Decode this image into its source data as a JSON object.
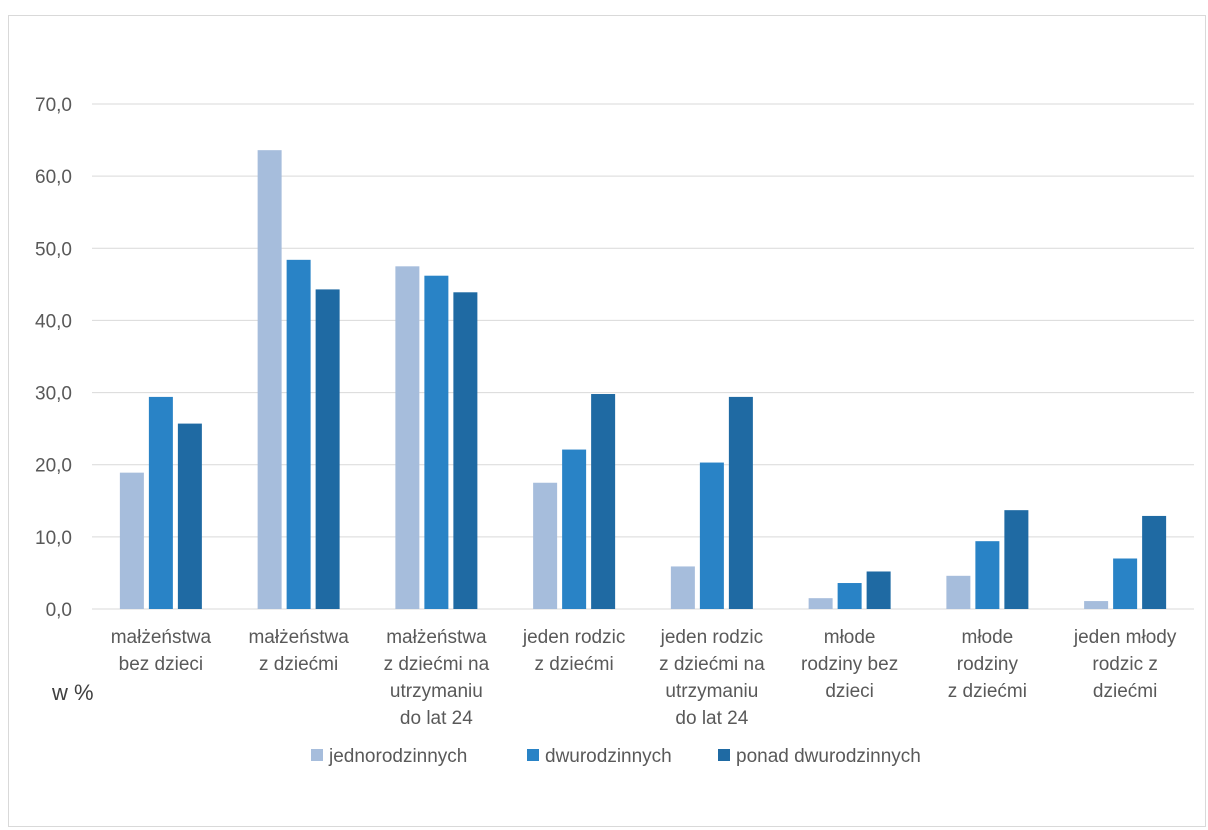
{
  "chart_data": {
    "type": "bar",
    "unit_label": "w %",
    "ylim": [
      0,
      70
    ],
    "y_ticks": [
      "0,0",
      "10,0",
      "20,0",
      "30,0",
      "40,0",
      "50,0",
      "60,0",
      "70,0"
    ],
    "grid": true,
    "legend_position": "bottom",
    "categories": [
      [
        "małżeństwa",
        "bez dzieci"
      ],
      [
        "małżeństwa",
        "z dziećmi"
      ],
      [
        "małżeństwa",
        "z dziećmi na",
        "utrzymaniu",
        "do lat 24"
      ],
      [
        "jeden rodzic",
        "z dziećmi"
      ],
      [
        "jeden rodzic",
        "z dziećmi na",
        "utrzymaniu",
        "do lat 24"
      ],
      [
        "młode",
        "rodziny bez",
        "dzieci"
      ],
      [
        "młode",
        "rodziny",
        "z dziećmi"
      ],
      [
        "jeden młody",
        "rodzic z",
        "dziećmi"
      ]
    ],
    "series": [
      {
        "name": "jednorodzinnych",
        "color": "#a6bddc",
        "values": [
          18.9,
          63.6,
          47.5,
          17.5,
          5.9,
          1.5,
          4.6,
          1.1
        ]
      },
      {
        "name": "dwurodzinnych",
        "color": "#2983c6",
        "values": [
          29.4,
          48.4,
          46.2,
          22.1,
          20.3,
          3.6,
          9.4,
          7.0
        ]
      },
      {
        "name": "ponad dwurodzinnych",
        "color": "#1f6aa3",
        "values": [
          25.7,
          44.3,
          43.9,
          29.8,
          29.4,
          5.2,
          13.7,
          12.9
        ]
      }
    ]
  }
}
